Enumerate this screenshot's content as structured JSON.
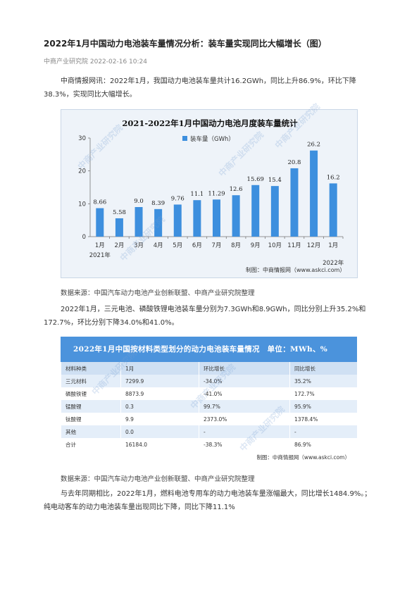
{
  "article": {
    "title": "2022年1月中国动力电池装车量情况分析：装车量实现同比大幅增长（图）",
    "meta": "中商产业研究院 2022-02-16 10:24",
    "para1": "中商情报网讯：2022年1月，我国动力电池装车量共计16.2GWh，同比上升86.9%，环比下降38.3%，实现同比大幅增长。",
    "source1": "数据来源：中国汽车动力电池产业创新联盟、中商产业研究院整理",
    "para2": "2022年1月，三元电池、磷酸铁锂电池装车量分别为7.3GWh和8.9GWh，同比分别上升35.2%和172.7%，环比分别下降34.0%和41.0%。",
    "source2": "数据来源：中国汽车动力电池产业创新联盟、中商产业研究院整理",
    "para3": "与去年同期相比，2022年1月，燃料电池专用车的动力电池装车量涨幅最大，同比增长1484.9%。；纯电动客车的动力电池装车量出现同比下降，同比下降11.1%"
  },
  "chart_data": {
    "type": "bar",
    "title": "2021-2022年1月中国动力电池月度装车量统计",
    "legend": "装车量（GWh）",
    "legend_position": "top-center",
    "categories": [
      "1月",
      "2月",
      "3月",
      "4月",
      "5月",
      "6月",
      "7月",
      "8月",
      "9月",
      "10月",
      "11月",
      "12月",
      "1月"
    ],
    "values": [
      8.66,
      5.58,
      9.0,
      8.39,
      9.76,
      11.1,
      11.29,
      12.6,
      15.69,
      15.4,
      20.8,
      26.2,
      16.2
    ],
    "value_labels": [
      "8.66",
      "5.58",
      "9.0",
      "8.39",
      "9.76",
      "11.1",
      "11.29",
      "12.6",
      "15.69",
      "15.4",
      "20.8",
      "26.2",
      "16.2"
    ],
    "year_labels": [
      "2021年",
      "2022年"
    ],
    "yticks": [
      0,
      10,
      20,
      30
    ],
    "ylim": [
      0,
      30
    ],
    "grid": false,
    "credit": "制图：中商情报网（www.askci.com）",
    "bar_color": "#3d8fde"
  },
  "table": {
    "header": "2022年1月中国按材料类型划分的动力电池装车量情况　单位：MWh、%",
    "columns": [
      "材料种类",
      "1月",
      "环比增长",
      "同比增长"
    ],
    "rows": [
      [
        "三元材料",
        "7299.9",
        "-34.0%",
        "35.2%"
      ],
      [
        "磷酸铁锂",
        "8873.9",
        "-41.0%",
        "172.7%"
      ],
      [
        "锰酸锂",
        "0.3",
        "99.7%",
        "95.9%"
      ],
      [
        "钛酸锂",
        "9.9",
        "2373.0%",
        "1378.4%"
      ],
      [
        "其他",
        "0.0",
        "-",
        "-"
      ],
      [
        "合计",
        "16184.0",
        "-38.3%",
        "86.9%"
      ]
    ],
    "credit": "制图：中商情报网（www.askci.com）"
  },
  "watermark": "中商产业研究院"
}
